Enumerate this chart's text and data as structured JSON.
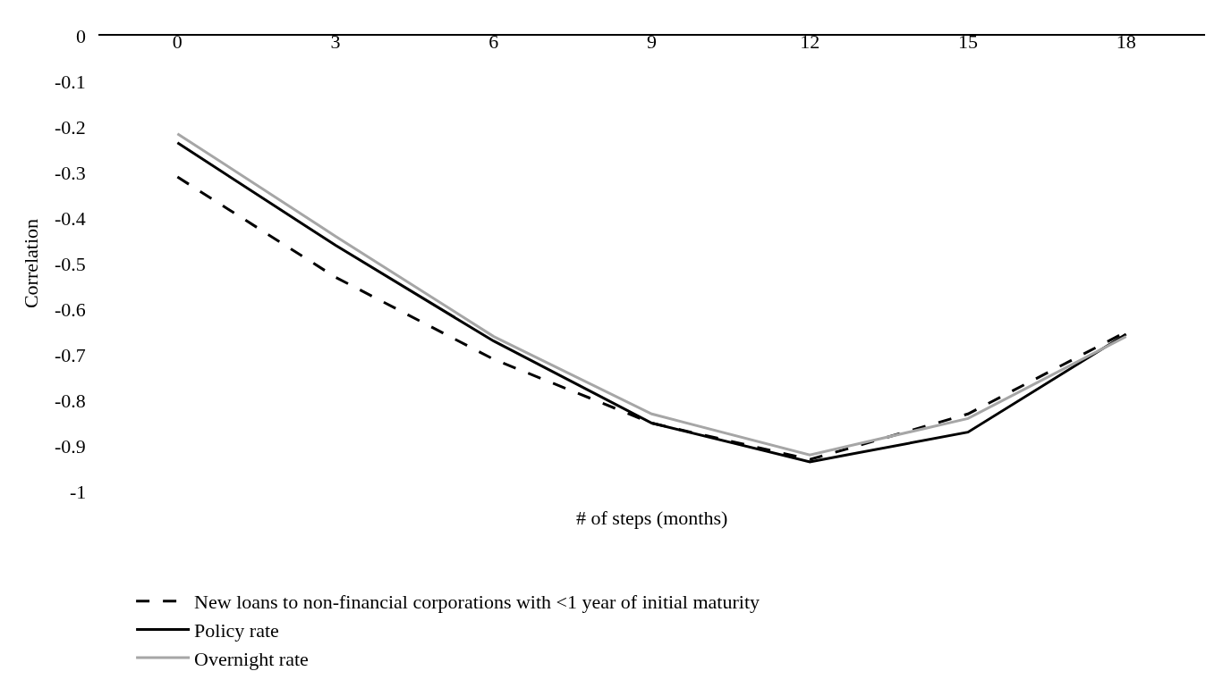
{
  "chart_data": {
    "type": "line",
    "xlabel": "# of steps (months)",
    "ylabel": "Correlation",
    "categories": [
      "0",
      "3",
      "6",
      "9",
      "12",
      "15",
      "18"
    ],
    "series": [
      {
        "name": "New loans to non-financial corporations with <1 year of initial maturity",
        "color": "#000000",
        "line_style": "dashed",
        "values": [
          -0.31,
          -0.53,
          -0.71,
          -0.85,
          -0.93,
          -0.83,
          -0.65
        ]
      },
      {
        "name": "Policy rate",
        "color": "#000000",
        "line_style": "solid",
        "values": [
          -0.235,
          -0.46,
          -0.67,
          -0.85,
          -0.935,
          -0.87,
          -0.655
        ]
      },
      {
        "name": "Overnight rate",
        "color": "#a6a6a6",
        "line_style": "solid",
        "values": [
          -0.215,
          -0.44,
          -0.66,
          -0.83,
          -0.92,
          -0.84,
          -0.66
        ]
      }
    ],
    "ylim": [
      -1,
      0
    ],
    "yticks": [
      0,
      -0.1,
      -0.2,
      -0.3,
      -0.4,
      -0.5,
      -0.6,
      -0.7,
      -0.8,
      -0.9,
      -1
    ],
    "legend": "bottom",
    "marker": "none"
  }
}
